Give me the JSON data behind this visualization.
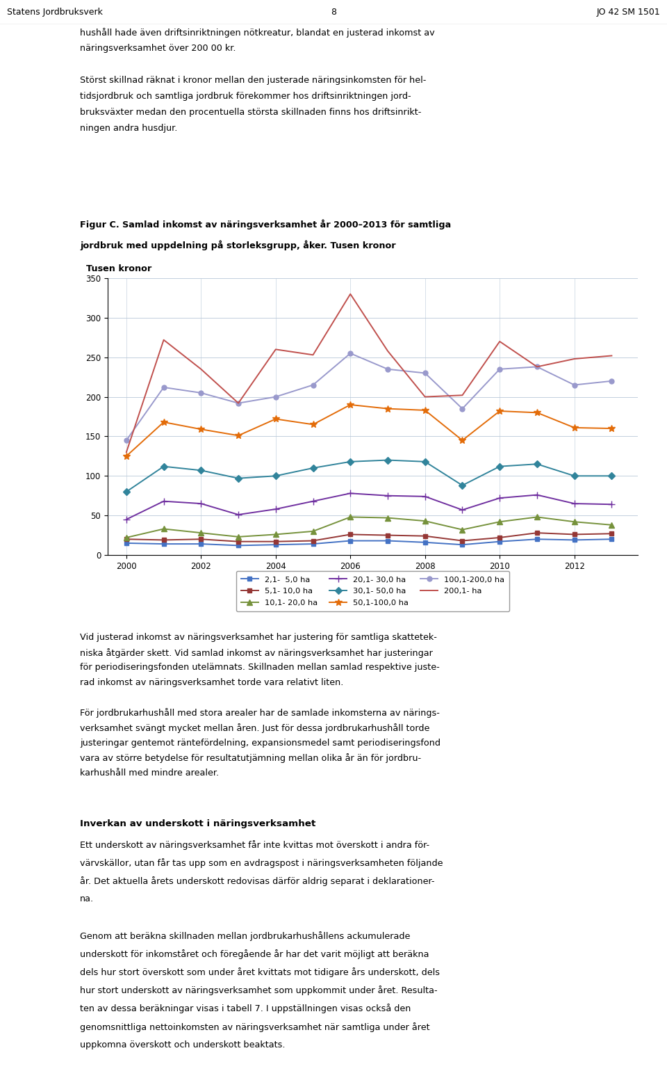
{
  "header_left": "Statens Jordbruksverk",
  "header_center": "8",
  "header_right": "JO 42 SM 1501",
  "para1_lines": [
    "hushåll hade även driftsinriktningen nötkreatur, blandat en justerad inkomst av",
    "näringsverksamhet över 200 00 kr."
  ],
  "para2_lines": [
    "Störst skillnad räknat i kronor mellan den justerade näringsinkomsten för hel-",
    "tidsjordbruk och samtliga jordbruk förekommer hos driftsinriktningen jord-",
    "bruksväxter medan den procentuella största skillnaden finns hos driftsinrikt-",
    "ningen andra husdjur."
  ],
  "fig_caption_line1": "Figur C. Samlad inkomst av näringsverksamhet år 2000–2013 för samtliga",
  "fig_caption_line2": "jordbruk med uppdelning på storleksgrupp, åker. Tusen kronor",
  "ylabel": "Tusen kronor",
  "para3_lines": [
    "Vid justerad inkomst av näringsverksamhet har justering för samtliga skattetek-",
    "niska åtgärder skett. Vid samlad inkomst av näringsverksamhet har justeringar",
    "för periodiseringsfonden utelämnats. Skillnaden mellan samlad respektive juste-",
    "rad inkomst av näringsverksamhet torde vara relativt liten."
  ],
  "para4_lines": [
    "För jordbrukarhushåll med stora arealer har de samlade inkomsterna av närings-",
    "verksamhet svängt mycket mellan åren. Just för dessa jordbrukarhushåll torde",
    "justeringar gentemot räntefördelning, expansionsmedel samt periodiseringsfond",
    "vara av större betydelse för resultatutjämning mellan olika år än för jordbru-",
    "karhushåll med mindre arealer."
  ],
  "section_heading": "Inverkan av underskott i näringsverksamhet",
  "para5_lines": [
    "Ett underskott av näringsverksamhet får inte kvittas mot överskott i andra för-",
    "värvskällor, utan får tas upp som en avdragspost i näringsverksamheten följande",
    "år. Det aktuella årets underskott redovisas därför aldrig separat i deklarationer-",
    "na."
  ],
  "para6_lines": [
    "Genom att beräkna skillnaden mellan jordbrukarhushållens ackumulerade",
    "underskott för inkomståret och föregående år har det varit möjligt att beräkna",
    "dels hur stort överskott som under året kvittats mot tidigare års underskott, dels",
    "hur stort underskott av näringsverksamhet som uppkommit under året. Resulta-",
    "ten av dessa beräkningar visas i tabell 7. I uppställningen visas också den",
    "genomsnittliga nettoinkomsten av näringsverksamhet när samtliga under året",
    "uppkomna överskott och underskott beaktats."
  ],
  "years": [
    2000,
    2001,
    2002,
    2003,
    2004,
    2005,
    2006,
    2007,
    2008,
    2009,
    2010,
    2011,
    2012,
    2013
  ],
  "series": [
    {
      "label": "2,1-  5,0 ha",
      "color": "#4472C4",
      "marker": "s",
      "markersize": 4,
      "linewidth": 1.4,
      "linestyle": "-",
      "values": [
        15,
        14,
        14,
        12,
        13,
        14,
        18,
        18,
        16,
        13,
        17,
        20,
        19,
        20
      ]
    },
    {
      "label": "5,1- 10,0 ha",
      "color": "#953735",
      "marker": "s",
      "markersize": 4,
      "linewidth": 1.4,
      "linestyle": "-",
      "values": [
        20,
        19,
        20,
        17,
        17,
        18,
        26,
        25,
        24,
        18,
        22,
        28,
        26,
        27
      ]
    },
    {
      "label": "10,1- 20,0 ha",
      "color": "#76923C",
      "marker": "^",
      "markersize": 6,
      "linewidth": 1.4,
      "linestyle": "-",
      "values": [
        22,
        33,
        28,
        23,
        26,
        30,
        48,
        47,
        43,
        32,
        42,
        48,
        42,
        38
      ]
    },
    {
      "label": "20,1- 30,0 ha",
      "color": "#7030A0",
      "marker": "+",
      "markersize": 7,
      "linewidth": 1.4,
      "linestyle": "-",
      "values": [
        45,
        68,
        65,
        51,
        58,
        68,
        78,
        75,
        74,
        57,
        72,
        76,
        65,
        64
      ]
    },
    {
      "label": "30,1- 50,0 ha",
      "color": "#31849B",
      "marker": "D",
      "markersize": 5,
      "linewidth": 1.4,
      "linestyle": "-",
      "values": [
        80,
        112,
        107,
        97,
        100,
        110,
        118,
        120,
        118,
        88,
        112,
        115,
        100,
        100
      ]
    },
    {
      "label": "50,1-100,0 ha",
      "color": "#E36C09",
      "marker": "*",
      "markersize": 7,
      "linewidth": 1.4,
      "linestyle": "-",
      "values": [
        125,
        168,
        159,
        151,
        172,
        165,
        190,
        185,
        183,
        145,
        182,
        180,
        161,
        160
      ]
    },
    {
      "label": "100,1-200,0 ha",
      "color": "#9999CC",
      "marker": "o",
      "markersize": 5,
      "linewidth": 1.4,
      "linestyle": "-",
      "values": [
        145,
        212,
        205,
        192,
        200,
        215,
        255,
        235,
        230,
        185,
        235,
        238,
        215,
        220
      ]
    },
    {
      "label": "200,1- ha",
      "color": "#C0504D",
      "marker": "None",
      "markersize": 0,
      "linewidth": 1.4,
      "linestyle": "-",
      "values": [
        130,
        272,
        235,
        192,
        260,
        253,
        330,
        258,
        200,
        202,
        270,
        238,
        248,
        252
      ]
    }
  ],
  "xlim": [
    1999.5,
    2013.7
  ],
  "ylim": [
    0,
    350
  ],
  "yticks": [
    0,
    50,
    100,
    150,
    200,
    250,
    300,
    350
  ],
  "xticks": [
    2000,
    2002,
    2004,
    2006,
    2008,
    2010,
    2012
  ]
}
